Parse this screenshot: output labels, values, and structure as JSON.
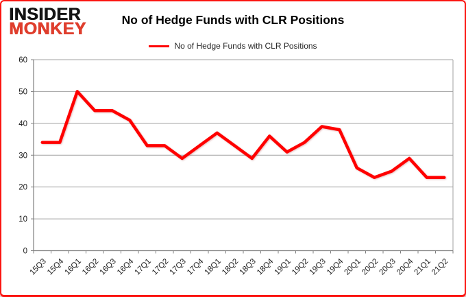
{
  "logo": {
    "line1": "INSIDER",
    "line2": "MONKEY"
  },
  "header": {
    "title": "No of Hedge Funds with CLR Positions"
  },
  "legend": {
    "label": "No of Hedge Funds with CLR Positions",
    "swatch_color": "#ff0000"
  },
  "chart_data": {
    "type": "line",
    "title": "No of Hedge Funds with CLR Positions",
    "categories": [
      "15Q3",
      "15Q4",
      "16Q1",
      "16Q2",
      "16Q3",
      "16Q4",
      "17Q1",
      "17Q2",
      "17Q3",
      "17Q4",
      "18Q1",
      "18Q2",
      "18Q3",
      "18Q4",
      "19Q1",
      "19Q2",
      "19Q3",
      "19Q4",
      "20Q1",
      "20Q2",
      "20Q3",
      "20Q4",
      "21Q1",
      "21Q2"
    ],
    "series": [
      {
        "name": "No of Hedge Funds with CLR Positions",
        "color": "#ff0000",
        "values": [
          34,
          34,
          50,
          44,
          44,
          41,
          33,
          33,
          29,
          33,
          37,
          33,
          29,
          36,
          31,
          34,
          39,
          38,
          26,
          23,
          25,
          29,
          23,
          23
        ]
      }
    ],
    "xlabel": "",
    "ylabel": "",
    "ylim": [
      0,
      60
    ],
    "yticks": [
      0,
      10,
      20,
      30,
      40,
      50,
      60
    ],
    "grid": "horizontal",
    "legend_position": "top"
  },
  "colors": {
    "line": "#ff0000",
    "grid": "#a0a0a0",
    "axis": "#7f7f7f",
    "frame_border": "#fb1511",
    "logo_black": "#141414",
    "logo_red": "#df3e2d",
    "legend_text": "#262626",
    "text": "#000000"
  }
}
